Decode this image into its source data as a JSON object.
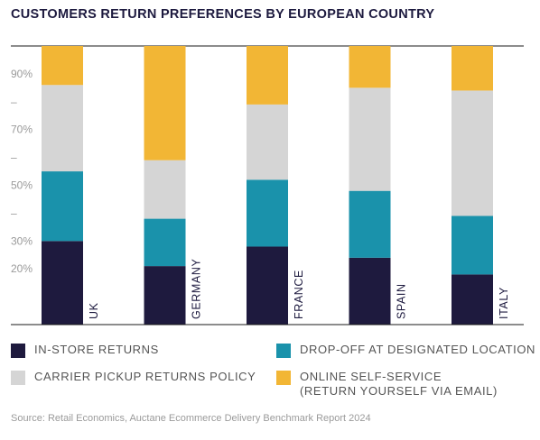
{
  "title": "CUSTOMERS RETURN PREFERENCES BY EUROPEAN COUNTRY",
  "source": "Source: Retail Economics, Auctane Ecommerce Delivery Benchmark Report 2024",
  "colors": {
    "in_store": "#1e1a3e",
    "drop_off": "#1a92ab",
    "carrier_pickup": "#d5d5d5",
    "online_self_service": "#f2b635",
    "axis": "#1a1a1a",
    "tick": "#9a9a9a"
  },
  "legend": [
    {
      "label": "IN-STORE RETURNS",
      "color_key": "in_store"
    },
    {
      "label": "DROP-OFF AT DESIGNATED LOCATION",
      "color_key": "drop_off"
    },
    {
      "label": "CARRIER PICKUP RETURNS POLICY",
      "color_key": "carrier_pickup"
    },
    {
      "label": "ONLINE SELF-SERVICE\n(RETURN YOURSELF VIA EMAIL)",
      "color_key": "online_self_service"
    }
  ],
  "chart_data": {
    "type": "bar",
    "stacked": true,
    "title": "CUSTOMERS RETURN PREFERENCES BY EUROPEAN COUNTRY",
    "categories": [
      "UK",
      "GERMANY",
      "FRANCE",
      "SPAIN",
      "ITALY"
    ],
    "series": [
      {
        "name": "IN-STORE RETURNS",
        "color_key": "in_store",
        "values": [
          30,
          21,
          28,
          24,
          18
        ]
      },
      {
        "name": "DROP-OFF AT DESIGNATED LOCATION",
        "color_key": "drop_off",
        "values": [
          25,
          17,
          24,
          24,
          21
        ]
      },
      {
        "name": "CARRIER PICKUP RETURNS POLICY",
        "color_key": "carrier_pickup",
        "values": [
          31,
          21,
          27,
          37,
          45
        ]
      },
      {
        "name": "ONLINE SELF-SERVICE (RETURN YOURSELF VIA EMAIL)",
        "color_key": "online_self_service",
        "values": [
          14,
          41,
          21,
          15,
          16
        ]
      }
    ],
    "ylim": [
      0,
      100
    ],
    "y_tick_labels": [
      {
        "value": 20,
        "label": "20%"
      },
      {
        "value": 30,
        "label": "30%"
      },
      {
        "value": 40,
        "label": "–"
      },
      {
        "value": 50,
        "label": "50%"
      },
      {
        "value": 60,
        "label": "–"
      },
      {
        "value": 70,
        "label": "70%"
      },
      {
        "value": 80,
        "label": "–"
      },
      {
        "value": 90,
        "label": "90%"
      }
    ],
    "category_label_orientation": "vertical",
    "legend_position": "bottom",
    "grid": false
  }
}
